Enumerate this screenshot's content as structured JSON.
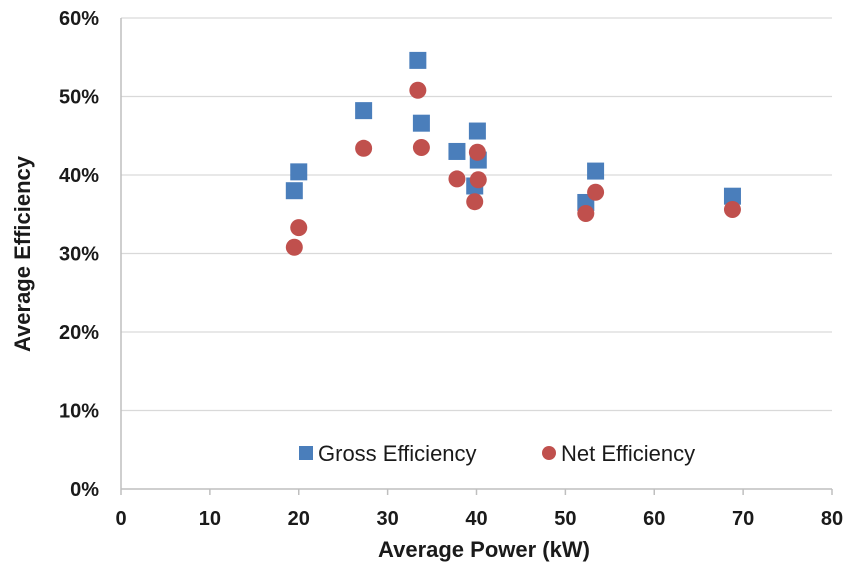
{
  "chart_data": {
    "type": "scatter",
    "title": "",
    "xlabel": "Average Power (kW)",
    "ylabel": "Average Efficiency",
    "xlim": [
      0,
      80
    ],
    "ylim": [
      0,
      60
    ],
    "x_ticks": [
      0,
      10,
      20,
      30,
      40,
      50,
      60,
      70,
      80
    ],
    "y_ticks": [
      0,
      10,
      20,
      30,
      40,
      50,
      60
    ],
    "x_tick_labels": [
      "0",
      "10",
      "20",
      "30",
      "40",
      "50",
      "60",
      "70",
      "80"
    ],
    "y_tick_labels": [
      "0%",
      "10%",
      "20%",
      "30%",
      "40%",
      "50%",
      "60%"
    ],
    "grid": {
      "horizontal": true,
      "vertical": false
    },
    "legend_position": "bottom-right",
    "series": [
      {
        "name": "Gross Efficiency",
        "marker": "square",
        "color": "#4a7ebb",
        "points": [
          {
            "x": 19.5,
            "y": 38.0
          },
          {
            "x": 20.0,
            "y": 40.4
          },
          {
            "x": 27.3,
            "y": 48.2
          },
          {
            "x": 33.4,
            "y": 54.6
          },
          {
            "x": 33.8,
            "y": 46.6
          },
          {
            "x": 37.8,
            "y": 43.0
          },
          {
            "x": 39.8,
            "y": 38.6
          },
          {
            "x": 40.1,
            "y": 45.6
          },
          {
            "x": 40.2,
            "y": 41.9
          },
          {
            "x": 52.3,
            "y": 36.5
          },
          {
            "x": 53.4,
            "y": 40.5
          },
          {
            "x": 68.8,
            "y": 37.3
          }
        ]
      },
      {
        "name": "Net Efficiency",
        "marker": "circle",
        "color": "#c0504d",
        "points": [
          {
            "x": 19.5,
            "y": 30.8
          },
          {
            "x": 20.0,
            "y": 33.3
          },
          {
            "x": 27.3,
            "y": 43.4
          },
          {
            "x": 33.4,
            "y": 50.8
          },
          {
            "x": 33.8,
            "y": 43.5
          },
          {
            "x": 37.8,
            "y": 39.5
          },
          {
            "x": 39.8,
            "y": 36.6
          },
          {
            "x": 40.1,
            "y": 42.9
          },
          {
            "x": 40.2,
            "y": 39.4
          },
          {
            "x": 52.3,
            "y": 35.1
          },
          {
            "x": 53.4,
            "y": 37.8
          },
          {
            "x": 68.8,
            "y": 35.6
          }
        ]
      }
    ]
  }
}
